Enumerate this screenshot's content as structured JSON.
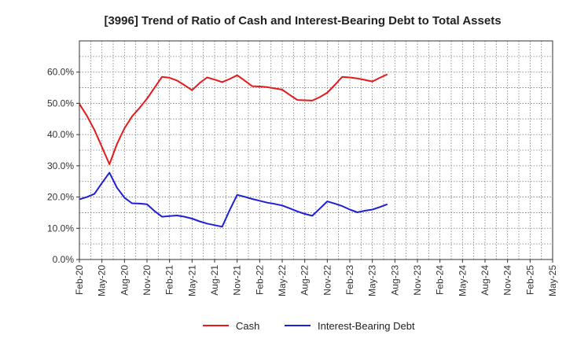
{
  "chart_data": {
    "type": "line",
    "title": "[3996]  Trend of Ratio of Cash and Interest-Bearing Debt to Total Assets",
    "xlabel": "",
    "ylabel": "",
    "ylim": [
      0,
      70
    ],
    "grid": true,
    "y_ticks": [
      0,
      10,
      20,
      30,
      40,
      50,
      60
    ],
    "y_tick_labels": [
      "0.0%",
      "10.0%",
      "20.0%",
      "30.0%",
      "40.0%",
      "50.0%",
      "60.0%"
    ],
    "x_ticks": [
      "Feb-20",
      "May-20",
      "Aug-20",
      "Nov-20",
      "Feb-21",
      "May-21",
      "Aug-21",
      "Nov-21",
      "Feb-22",
      "May-22",
      "Aug-22",
      "Nov-22",
      "Feb-23",
      "May-23",
      "Aug-23",
      "Nov-23",
      "Feb-24",
      "May-24",
      "Aug-24",
      "Nov-24",
      "Feb-25",
      "May-25"
    ],
    "legend_position": "bottom",
    "series": [
      {
        "name": "Cash",
        "color": "#e31a1c",
        "points": [
          [
            0,
            49.8
          ],
          [
            1,
            46
          ],
          [
            2,
            41.5
          ],
          [
            3,
            36
          ],
          [
            4,
            30.5
          ],
          [
            5,
            37
          ],
          [
            6,
            42
          ],
          [
            7,
            45.8
          ],
          [
            8,
            48.5
          ],
          [
            9,
            51.5
          ],
          [
            10,
            55
          ],
          [
            11,
            58.5
          ],
          [
            12,
            58.2
          ],
          [
            13,
            57.3
          ],
          [
            14,
            55.8
          ],
          [
            15,
            54.2
          ],
          [
            16,
            56.5
          ],
          [
            17,
            58.3
          ],
          [
            18,
            57.6
          ],
          [
            19,
            56.8
          ],
          [
            20,
            57.8
          ],
          [
            21,
            59
          ],
          [
            22,
            57.3
          ],
          [
            23,
            55.5
          ],
          [
            24,
            55.4
          ],
          [
            25,
            55.2
          ],
          [
            26,
            54.8
          ],
          [
            27,
            54.4
          ],
          [
            28,
            52.7
          ],
          [
            29,
            51.1
          ],
          [
            30,
            51
          ],
          [
            31,
            50.9
          ],
          [
            32,
            52
          ],
          [
            33,
            53.4
          ],
          [
            34,
            55.9
          ],
          [
            35,
            58.5
          ],
          [
            36,
            58.3
          ],
          [
            37,
            58
          ],
          [
            38,
            57.5
          ],
          [
            39,
            57
          ],
          [
            40,
            58.2
          ],
          [
            41,
            59.3
          ]
        ]
      },
      {
        "name": "Interest-Bearing Debt",
        "color": "#1f1fd6",
        "points": [
          [
            0,
            19.3
          ],
          [
            1,
            20
          ],
          [
            2,
            21
          ],
          [
            3,
            24.5
          ],
          [
            4,
            27.8
          ],
          [
            5,
            23
          ],
          [
            6,
            19.8
          ],
          [
            7,
            18
          ],
          [
            8,
            17.9
          ],
          [
            9,
            17.7
          ],
          [
            10,
            15.5
          ],
          [
            11,
            13.7
          ],
          [
            12,
            13.9
          ],
          [
            13,
            14.1
          ],
          [
            14,
            13.7
          ],
          [
            15,
            13.1
          ],
          [
            16,
            12.2
          ],
          [
            17,
            11.5
          ],
          [
            18,
            11
          ],
          [
            19,
            10.5
          ],
          [
            20,
            15.8
          ],
          [
            21,
            20.7
          ],
          [
            22,
            20.1
          ],
          [
            23,
            19.4
          ],
          [
            24,
            18.8
          ],
          [
            25,
            18.2
          ],
          [
            26,
            17.8
          ],
          [
            27,
            17.3
          ],
          [
            28,
            16.4
          ],
          [
            29,
            15.4
          ],
          [
            30,
            14.6
          ],
          [
            31,
            14
          ],
          [
            32,
            16.3
          ],
          [
            33,
            18.6
          ],
          [
            34,
            17.9
          ],
          [
            35,
            17.1
          ],
          [
            36,
            16
          ],
          [
            37,
            15.1
          ],
          [
            38,
            15.6
          ],
          [
            39,
            16
          ],
          [
            40,
            16.8
          ],
          [
            41,
            17.7
          ]
        ]
      }
    ]
  }
}
